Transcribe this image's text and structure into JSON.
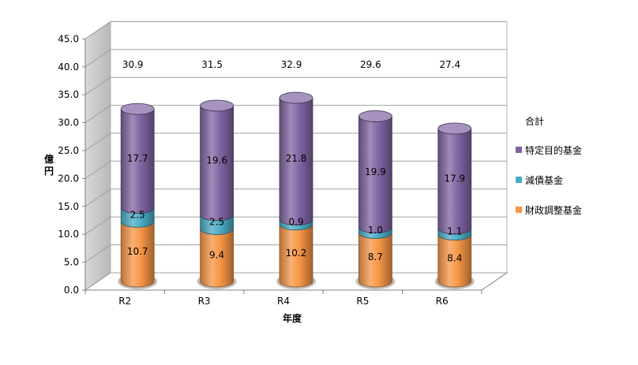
{
  "chart_data": {
    "type": "bar",
    "stacked": true,
    "style": "3d-cylinder",
    "title": "",
    "xlabel": "年度",
    "ylabel": "億円",
    "ylim": [
      0,
      45
    ],
    "yticks": [
      "0.0",
      "5.0",
      "10.0",
      "15.0",
      "20.0",
      "25.0",
      "30.0",
      "35.0",
      "40.0",
      "45.0"
    ],
    "grid": true,
    "legend_title": "合計",
    "legend_position": "right",
    "categories": [
      "R2",
      "R3",
      "R4",
      "R5",
      "R6"
    ],
    "series": [
      {
        "name": "財政調整基金",
        "values": [
          10.7,
          9.4,
          10.2,
          8.7,
          8.4
        ],
        "labels": [
          "10.7",
          "9.4",
          "10.2",
          "8.7",
          "8.4"
        ],
        "color": "#F79646"
      },
      {
        "name": "減債基金",
        "values": [
          2.5,
          2.5,
          0.9,
          1.0,
          1.1
        ],
        "labels": [
          "2.5",
          "2.5",
          "0.9",
          "1.0",
          "1.1"
        ],
        "color": "#4BACC6"
      },
      {
        "name": "特定目的基金",
        "values": [
          17.7,
          19.6,
          21.8,
          19.9,
          17.9
        ],
        "labels": [
          "17.7",
          "19.6",
          "21.8",
          "19.9",
          "17.9"
        ],
        "color": "#8064A2"
      }
    ],
    "totals": [
      30.9,
      31.5,
      32.9,
      29.6,
      27.4
    ],
    "total_labels": [
      "30.9",
      "31.5",
      "32.9",
      "29.6",
      "27.4"
    ],
    "colors": {
      "wall": "#ffffff",
      "side_wall": "#c8c8c8",
      "floor": "#ffffff",
      "gridline": "#a0a0a0",
      "axis_text": "#000000"
    }
  }
}
